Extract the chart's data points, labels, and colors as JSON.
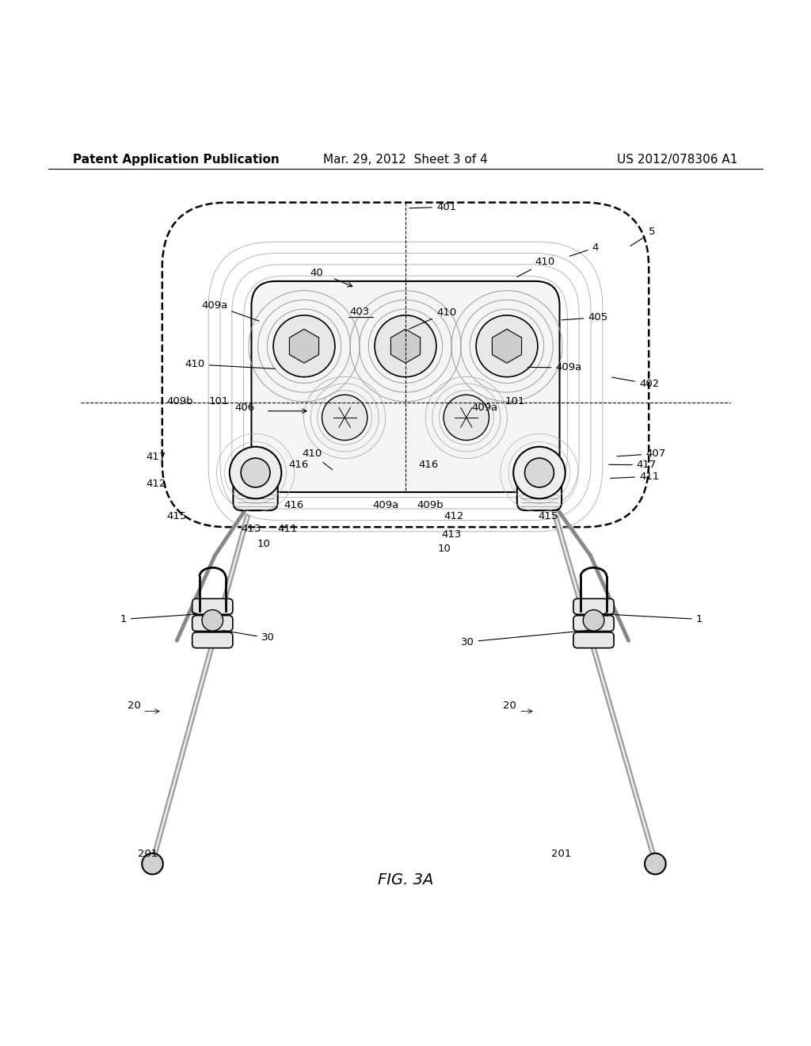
{
  "bg_color": "#ffffff",
  "line_color": "#000000",
  "gray_color": "#888888",
  "light_gray": "#cccccc",
  "header_left": "Patent Application Publication",
  "header_center": "Mar. 29, 2012  Sheet 3 of 4",
  "header_right": "US 2012/078306 A1",
  "figure_label": "FIG. 3A",
  "title_fontsize": 11,
  "label_fontsize": 9.5,
  "fig_label_fontsize": 14,
  "contour_rounding_sizes": [
    0.05,
    0.06,
    0.07,
    0.08
  ]
}
